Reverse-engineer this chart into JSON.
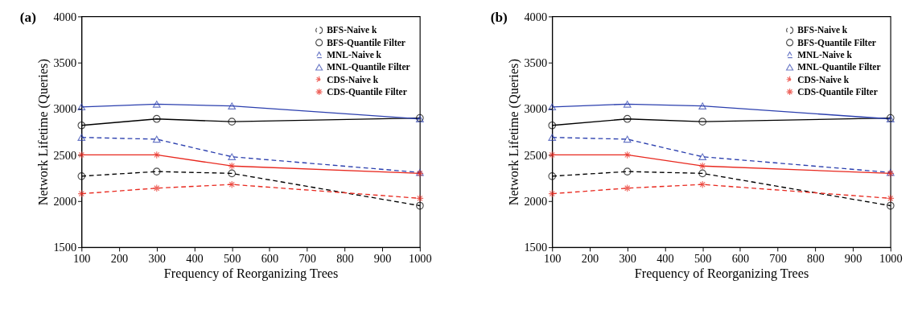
{
  "chart_data": [
    {
      "type": "line",
      "title": "(a)",
      "xlabel": "Frequency of Reorganizing Trees",
      "ylabel": "Network Lifetime (Queries)",
      "x": [
        100,
        300,
        500,
        1000
      ],
      "xlim": [
        100,
        1000
      ],
      "xticks": [
        100,
        200,
        300,
        400,
        500,
        600,
        700,
        800,
        900,
        1000
      ],
      "ylim": [
        1500,
        4000
      ],
      "yticks": [
        1500,
        2000,
        2500,
        3000,
        3500,
        4000
      ],
      "grid": false,
      "legend": "top right",
      "series": [
        {
          "name": "BFS-Naive k",
          "color": "#000000",
          "line_style": "dashed",
          "marker": "circle",
          "values": [
            2270,
            2320,
            2300,
            1950
          ]
        },
        {
          "name": "BFS-Quantile Filter",
          "color": "#000000",
          "line_style": "solid",
          "marker": "circle",
          "values": [
            2820,
            2890,
            2860,
            2900
          ]
        },
        {
          "name": "MNL-Naive k",
          "color": "#2b3fae",
          "line_style": "dashed",
          "marker": "triangle",
          "values": [
            2690,
            2670,
            2480,
            2310
          ]
        },
        {
          "name": "MNL-Quantile Filter",
          "color": "#2b3fae",
          "line_style": "solid",
          "marker": "triangle",
          "values": [
            3020,
            3050,
            3030,
            2890
          ]
        },
        {
          "name": "CDS-Naive k",
          "color": "#e8281e",
          "line_style": "dashed",
          "marker": "cross",
          "values": [
            2080,
            2140,
            2180,
            2030
          ]
        },
        {
          "name": "CDS-Quantile Filter",
          "color": "#e8281e",
          "line_style": "solid",
          "marker": "cross",
          "values": [
            2500,
            2500,
            2380,
            2300
          ]
        }
      ]
    },
    {
      "type": "line",
      "title": "(b)",
      "xlabel": "Frequency of Reorganizing Trees",
      "ylabel": "Network Lifetime (Queries)",
      "x": [
        100,
        300,
        500,
        1000
      ],
      "xlim": [
        100,
        1000
      ],
      "xticks": [
        100,
        200,
        300,
        400,
        500,
        600,
        700,
        800,
        900,
        1000
      ],
      "ylim": [
        1500,
        4000
      ],
      "yticks": [
        1500,
        2000,
        2500,
        3000,
        3500,
        4000
      ],
      "grid": false,
      "legend": "top right",
      "series": [
        {
          "name": "BFS-Naive k",
          "color": "#000000",
          "line_style": "dashed",
          "marker": "circle",
          "values": [
            2270,
            2320,
            2300,
            1950
          ]
        },
        {
          "name": "BFS-Quantile Filter",
          "color": "#000000",
          "line_style": "solid",
          "marker": "circle",
          "values": [
            2820,
            2890,
            2860,
            2900
          ]
        },
        {
          "name": "MNL-Naive k",
          "color": "#2b3fae",
          "line_style": "dashed",
          "marker": "triangle",
          "values": [
            2690,
            2670,
            2480,
            2310
          ]
        },
        {
          "name": "MNL-Quantile Filter",
          "color": "#2b3fae",
          "line_style": "solid",
          "marker": "triangle",
          "values": [
            3020,
            3050,
            3030,
            2890
          ]
        },
        {
          "name": "CDS-Naive k",
          "color": "#e8281e",
          "line_style": "dashed",
          "marker": "cross",
          "values": [
            2080,
            2140,
            2180,
            2030
          ]
        },
        {
          "name": "CDS-Quantile Filter",
          "color": "#e8281e",
          "line_style": "solid",
          "marker": "cross",
          "values": [
            2500,
            2500,
            2380,
            2300
          ]
        }
      ]
    }
  ]
}
